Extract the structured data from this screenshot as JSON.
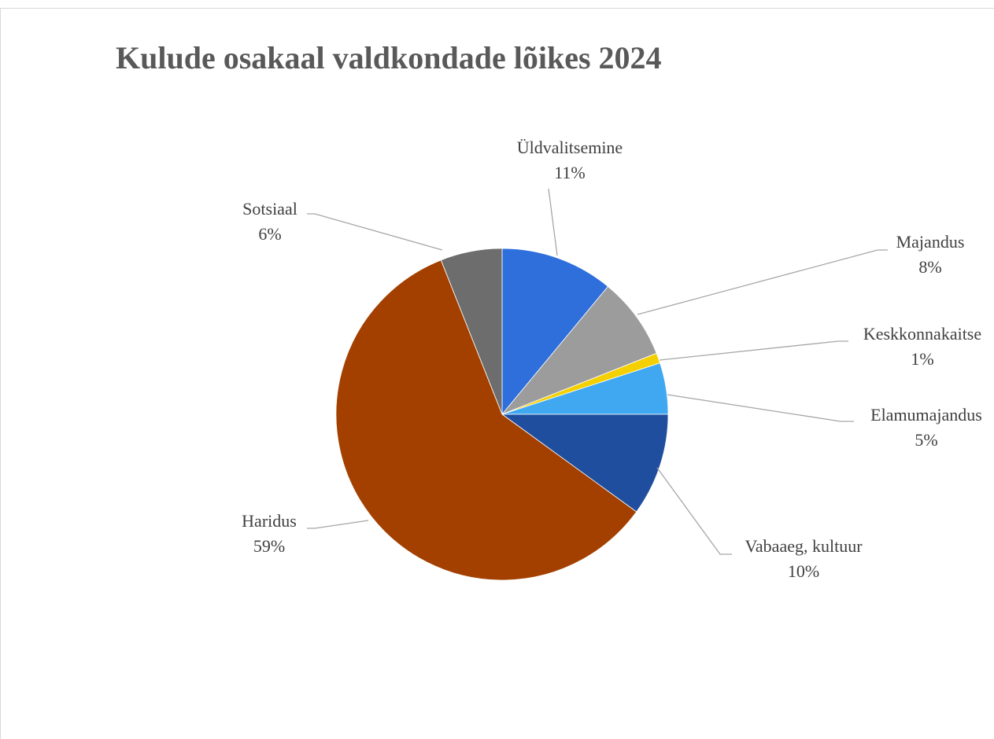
{
  "chart_data": {
    "type": "pie",
    "title": "Kulude osakaal valdkondade lõikes 2024",
    "categories": [
      "Üldvalitsemine",
      "Majandus",
      "Keskkonnakaitse",
      "Elamumajandus",
      "Vabaaeg, kultuur",
      "Haridus",
      "Sotsiaal"
    ],
    "values": [
      11,
      8,
      1,
      5,
      10,
      59,
      6
    ],
    "value_labels": [
      "11%",
      "8%",
      "1%",
      "5%",
      "10%",
      "59%",
      "6%"
    ],
    "colors": [
      "#2e6fdc",
      "#9c9c9c",
      "#f5d000",
      "#40a8f0",
      "#1f4e9e",
      "#a34000",
      "#6d6d6d"
    ]
  }
}
